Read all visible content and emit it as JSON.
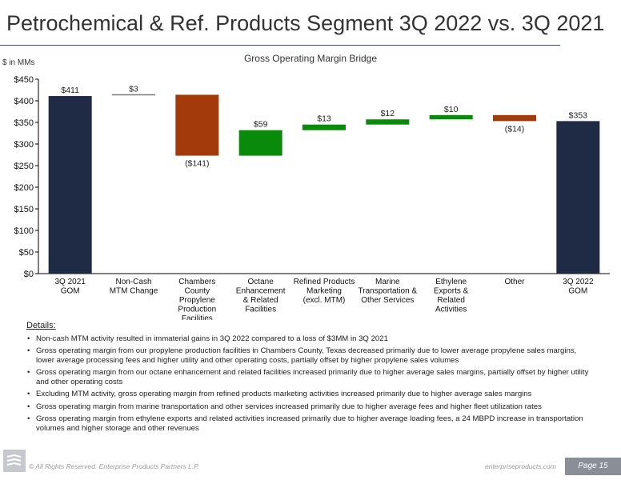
{
  "slide": {
    "title": "Petrochemical & Ref. Products Segment 3Q 2022 vs. 3Q 2021",
    "details_heading": "Details:",
    "details": [
      "Non-cash MTM activity resulted in immaterial gains in 3Q 2022 compared to a loss of $3MM in 3Q 2021",
      "Gross operating margin from our propylene production facilities in Chambers County, Texas decreased primarily due to lower average propylene sales margins, lower average processing fees and higher utility and other operating costs, partially offset by higher propylene sales volumes",
      "Gross operating margin from our octane enhancement and related facilities increased primarily due to higher average sales margins, partially offset by higher utility and other operating costs",
      "Excluding MTM activity, gross operating margin from refined products marketing activities increased primarily due to higher average sales margins",
      "Gross operating margin from marine transportation and other services increased primarily due to higher average fees and higher fleet utilization rates",
      "Gross operating margin from ethylene exports and related activities increased primarily due to higher average loading fees, a 24 MBPD increase in transportation volumes and higher storage and other revenues"
    ],
    "footer_left": "© All Rights Reserved. Enterprise Products Partners L.P.",
    "footer_right": "enterpriseproducts.com",
    "page_label": "Page 15"
  },
  "chart_data": {
    "type": "bar",
    "subtype": "waterfall",
    "title": "Gross Operating Margin Bridge",
    "ylabel": "$ in MMs",
    "ylim": [
      0,
      450
    ],
    "yticks": [
      0,
      50,
      100,
      150,
      200,
      250,
      300,
      350,
      400,
      450
    ],
    "ytick_labels": [
      "$0",
      "$50",
      "$100",
      "$150",
      "$200",
      "$250",
      "$300",
      "$350",
      "$400",
      "$450"
    ],
    "grid": false,
    "categories": [
      [
        "3Q 2021",
        "GOM"
      ],
      [
        "Non-Cash",
        "MTM Change"
      ],
      [
        "Chambers",
        "County",
        "Propylene",
        "Production",
        "Facilities"
      ],
      [
        "Octane",
        "Enhancement",
        "& Related",
        "Facilities"
      ],
      [
        "Refined Products",
        "Marketing",
        "(excl. MTM)"
      ],
      [
        "Marine",
        "Transportation &",
        "Other Services"
      ],
      [
        "Ethylene",
        "Exports &",
        "Related",
        "Activities"
      ],
      [
        "Other"
      ],
      [
        "3Q 2022",
        "GOM"
      ]
    ],
    "bars": [
      {
        "start": 0,
        "end": 411,
        "kind": "total",
        "label": "$411"
      },
      {
        "start": 411,
        "end": 414,
        "kind": "neutral",
        "label": "$3"
      },
      {
        "start": 414,
        "end": 273,
        "kind": "decrease",
        "label": "($141)"
      },
      {
        "start": 273,
        "end": 332,
        "kind": "increase",
        "label": "$59"
      },
      {
        "start": 332,
        "end": 345,
        "kind": "increase",
        "label": "$13"
      },
      {
        "start": 345,
        "end": 357,
        "kind": "increase",
        "label": "$12"
      },
      {
        "start": 357,
        "end": 367,
        "kind": "increase",
        "label": "$10"
      },
      {
        "start": 367,
        "end": 353,
        "kind": "decrease",
        "label": "($14)"
      },
      {
        "start": 0,
        "end": 353,
        "kind": "total",
        "label": "$353"
      }
    ],
    "colors": {
      "total": "#1f2a44",
      "increase": "#0a8a0a",
      "decrease": "#a33a0b",
      "neutral": "#7a7a7a",
      "axis": "#000000"
    }
  }
}
